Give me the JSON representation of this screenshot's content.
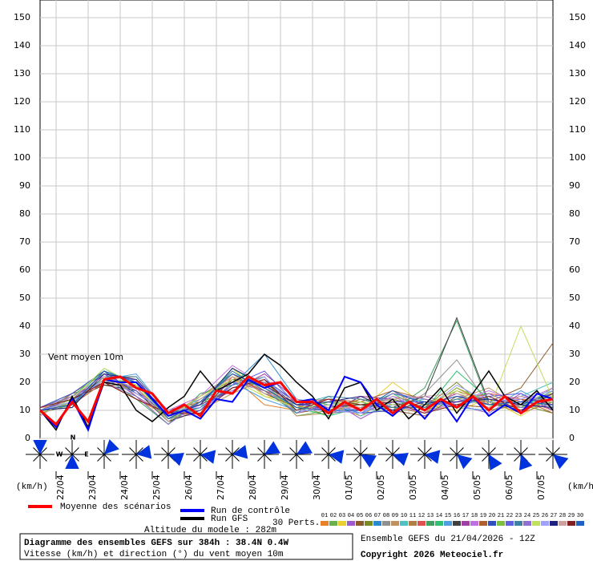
{
  "chart_data": {
    "type": "line",
    "annotation": "Vent moyen 10m",
    "y_unit": "(km/h)",
    "title": "Diagramme des ensembles GEFS sur 384h : 38.4N 0.4W",
    "subtitle": "Vitesse (km/h) et direction (°) du vent moyen 10m",
    "altitude": "Altitude du modele : 282m",
    "run_info": "Ensemble GEFS du 21/04/2026 - 12Z",
    "copyright": "Copyright 2026 Meteociel.fr",
    "perturbations_label": "30 Perts.",
    "ylim": [
      0,
      150
    ],
    "yticks": [
      0,
      10,
      20,
      30,
      40,
      50,
      60,
      70,
      80,
      90,
      100,
      110,
      120,
      130,
      140,
      150
    ],
    "xlim": [
      0,
      384
    ],
    "xticks": [
      {
        "value": 12,
        "label": "22/04"
      },
      {
        "value": 36,
        "label": "23/04"
      },
      {
        "value": 60,
        "label": "24/04"
      },
      {
        "value": 84,
        "label": "25/04"
      },
      {
        "value": 108,
        "label": "26/04"
      },
      {
        "value": 132,
        "label": "27/04"
      },
      {
        "value": 156,
        "label": "28/04"
      },
      {
        "value": 180,
        "label": "29/04"
      },
      {
        "value": 204,
        "label": "30/04"
      },
      {
        "value": 228,
        "label": "01/05"
      },
      {
        "value": 252,
        "label": "02/05"
      },
      {
        "value": 276,
        "label": "03/05"
      },
      {
        "value": 300,
        "label": "04/05"
      },
      {
        "value": 324,
        "label": "05/05"
      },
      {
        "value": 348,
        "label": "06/05"
      },
      {
        "value": 372,
        "label": "07/05"
      }
    ],
    "grid": true,
    "x": [
      0,
      12,
      24,
      36,
      48,
      60,
      72,
      84,
      96,
      108,
      120,
      132,
      144,
      156,
      168,
      180,
      192,
      204,
      216,
      228,
      240,
      252,
      264,
      276,
      288,
      300,
      312,
      324,
      336,
      348,
      360,
      372,
      384
    ],
    "series": [
      {
        "name": "Moyenne des scénarios",
        "color": "#ff0000",
        "width": 3,
        "values": [
          10,
          5,
          13,
          6,
          21,
          22,
          18,
          16,
          9,
          12,
          8,
          17,
          16,
          22,
          19,
          20,
          13,
          13,
          9,
          13,
          10,
          14,
          9,
          13,
          10,
          14,
          11,
          15,
          10,
          15,
          9,
          13,
          14
        ]
      },
      {
        "name": "Run de contrôle",
        "color": "#0000ff",
        "width": 2,
        "values": [
          10,
          4,
          14,
          3,
          21,
          20,
          20,
          14,
          8,
          10,
          7,
          14,
          13,
          21,
          18,
          20,
          13,
          14,
          10,
          22,
          20,
          12,
          8,
          13,
          7,
          14,
          6,
          15,
          8,
          12,
          9,
          16,
          14
        ]
      },
      {
        "name": "Run GFS",
        "color": "#000000",
        "width": 1.5,
        "values": [
          10,
          3,
          15,
          4,
          20,
          19,
          10,
          6,
          11,
          15,
          24,
          17,
          20,
          23,
          30,
          26,
          20,
          15,
          7,
          18,
          20,
          10,
          14,
          7,
          12,
          18,
          9,
          16,
          24,
          15,
          12,
          17,
          10
        ]
      }
    ],
    "x_members": [
      0,
      24,
      48,
      72,
      96,
      120,
      144,
      168,
      192,
      216,
      240,
      264,
      288,
      312,
      336,
      360,
      384
    ],
    "members": [
      {
        "name": "01",
        "color": "#e8802a",
        "values": [
          10,
          14,
          20,
          14,
          8,
          15,
          22,
          12,
          10,
          12,
          8,
          15,
          10,
          18,
          12,
          14,
          13
        ]
      },
      {
        "name": "02",
        "color": "#6ab04c",
        "values": [
          9,
          12,
          22,
          18,
          6,
          10,
          18,
          20,
          8,
          10,
          14,
          12,
          9,
          14,
          16,
          11,
          18
        ]
      },
      {
        "name": "03",
        "color": "#e8d030",
        "values": [
          11,
          15,
          21,
          16,
          9,
          12,
          25,
          15,
          13,
          9,
          10,
          20,
          12,
          10,
          14,
          8,
          15
        ]
      },
      {
        "name": "04",
        "color": "#a05ad0",
        "values": [
          10,
          13,
          23,
          20,
          7,
          9,
          20,
          17,
          11,
          14,
          7,
          13,
          15,
          12,
          9,
          16,
          11
        ]
      },
      {
        "name": "05",
        "color": "#8b5a2b",
        "values": [
          8,
          16,
          19,
          19,
          10,
          13,
          17,
          22,
          9,
          11,
          12,
          10,
          8,
          15,
          13,
          18,
          34
        ]
      },
      {
        "name": "06",
        "color": "#7a8a20",
        "values": [
          10,
          11,
          24,
          15,
          5,
          14,
          21,
          19,
          12,
          8,
          15,
          14,
          11,
          20,
          10,
          12,
          9
        ]
      },
      {
        "name": "07",
        "color": "#2a8ad0",
        "values": [
          9,
          14,
          20,
          21,
          8,
          11,
          19,
          30,
          14,
          12,
          9,
          16,
          13,
          11,
          15,
          10,
          14
        ]
      },
      {
        "name": "08",
        "color": "#909090",
        "values": [
          10,
          15,
          22,
          17,
          6,
          15,
          23,
          18,
          10,
          13,
          11,
          9,
          16,
          28,
          12,
          13,
          16
        ]
      },
      {
        "name": "09",
        "color": "#c09060",
        "values": [
          11,
          12,
          21,
          22,
          9,
          10,
          16,
          21,
          8,
          9,
          13,
          17,
          10,
          14,
          18,
          11,
          12
        ]
      },
      {
        "name": "10",
        "color": "#50c0c0",
        "values": [
          10,
          13,
          25,
          18,
          7,
          13,
          24,
          16,
          12,
          15,
          8,
          12,
          14,
          12,
          11,
          15,
          20
        ]
      },
      {
        "name": "11",
        "color": "#b08040",
        "values": [
          9,
          16,
          23,
          16,
          10,
          12,
          18,
          20,
          11,
          10,
          14,
          11,
          9,
          17,
          13,
          9,
          13
        ]
      },
      {
        "name": "12",
        "color": "#e05050",
        "values": [
          10,
          14,
          20,
          20,
          8,
          9,
          22,
          17,
          13,
          14,
          10,
          15,
          12,
          13,
          16,
          14,
          10
        ]
      },
      {
        "name": "13",
        "color": "#40a060",
        "values": [
          10,
          12,
          22,
          14,
          5,
          16,
          19,
          22,
          9,
          12,
          13,
          10,
          18,
          42,
          12,
          11,
          17
        ]
      },
      {
        "name": "14",
        "color": "#30c070",
        "values": [
          11,
          15,
          24,
          19,
          7,
          11,
          25,
          18,
          11,
          8,
          11,
          16,
          10,
          24,
          14,
          12,
          15
        ]
      },
      {
        "name": "15",
        "color": "#50a0e0",
        "values": [
          9,
          13,
          21,
          23,
          9,
          14,
          20,
          14,
          10,
          13,
          9,
          13,
          13,
          11,
          10,
          17,
          11
        ]
      },
      {
        "name": "16",
        "color": "#404040",
        "values": [
          10,
          14,
          19,
          17,
          6,
          10,
          21,
          20,
          12,
          11,
          12,
          11,
          15,
          43,
          13,
          10,
          14
        ]
      },
      {
        "name": "17",
        "color": "#a040a0",
        "values": [
          10,
          11,
          23,
          15,
          8,
          12,
          17,
          23,
          14,
          9,
          15,
          14,
          11,
          16,
          12,
          15,
          12
        ]
      },
      {
        "name": "18",
        "color": "#c070e0",
        "values": [
          8,
          15,
          22,
          21,
          10,
          15,
          26,
          19,
          9,
          12,
          10,
          12,
          9,
          13,
          17,
          13,
          18
        ]
      },
      {
        "name": "19",
        "color": "#b06030",
        "values": [
          10,
          12,
          20,
          18,
          7,
          13,
          23,
          16,
          11,
          14,
          13,
          17,
          14,
          12,
          11,
          14,
          9
        ]
      },
      {
        "name": "20",
        "color": "#3050c0",
        "values": [
          11,
          16,
          24,
          16,
          9,
          11,
          18,
          21,
          13,
          10,
          9,
          10,
          12,
          15,
          14,
          12,
          16
        ]
      },
      {
        "name": "21",
        "color": "#80c040",
        "values": [
          9,
          13,
          21,
          20,
          6,
          14,
          22,
          18,
          10,
          13,
          12,
          14,
          10,
          18,
          13,
          11,
          13
        ]
      },
      {
        "name": "22",
        "color": "#6060e0",
        "values": [
          10,
          14,
          23,
          17,
          8,
          10,
          19,
          24,
          12,
          11,
          11,
          13,
          13,
          12,
          15,
          16,
          10
        ]
      },
      {
        "name": "23",
        "color": "#4080a0",
        "values": [
          10,
          12,
          22,
          22,
          9,
          12,
          24,
          17,
          9,
          15,
          14,
          11,
          11,
          14,
          12,
          13,
          15
        ]
      },
      {
        "name": "24",
        "color": "#9070d0",
        "values": [
          11,
          15,
          20,
          15,
          5,
          13,
          20,
          20,
          13,
          9,
          10,
          16,
          14,
          11,
          16,
          11,
          12
        ]
      },
      {
        "name": "25",
        "color": "#c0e060",
        "values": [
          9,
          14,
          25,
          19,
          7,
          15,
          21,
          15,
          11,
          12,
          13,
          12,
          12,
          17,
          10,
          40,
          14
        ]
      },
      {
        "name": "26",
        "color": "#a0a0ff",
        "values": [
          10,
          13,
          21,
          16,
          10,
          11,
          17,
          22,
          10,
          10,
          9,
          15,
          10,
          19,
          13,
          14,
          17
        ]
      },
      {
        "name": "27",
        "color": "#202080",
        "values": [
          10,
          11,
          23,
          21,
          8,
          12,
          25,
          19,
          12,
          13,
          15,
          10,
          13,
          13,
          14,
          12,
          11
        ]
      },
      {
        "name": "28",
        "color": "#d0a0a0",
        "values": [
          8,
          15,
          22,
          18,
          6,
          14,
          22,
          16,
          14,
          11,
          11,
          14,
          15,
          16,
          11,
          15,
          13
        ]
      },
      {
        "name": "29",
        "color": "#802020",
        "values": [
          11,
          14,
          20,
          14,
          9,
          9,
          18,
          21,
          10,
          14,
          12,
          13,
          9,
          12,
          15,
          10,
          16
        ]
      },
      {
        "name": "30",
        "color": "#2060c0",
        "values": [
          10,
          12,
          24,
          20,
          7,
          13,
          23,
          18,
          11,
          10,
          10,
          17,
          12,
          15,
          12,
          13,
          12
        ]
      }
    ],
    "wind_directions": [
      0,
      180,
      45,
      80,
      110,
      100,
      80,
      60,
      60,
      100,
      120,
      110,
      100,
      130,
      150,
      160,
      130
    ],
    "compass": [
      "N",
      "W",
      "E"
    ]
  }
}
